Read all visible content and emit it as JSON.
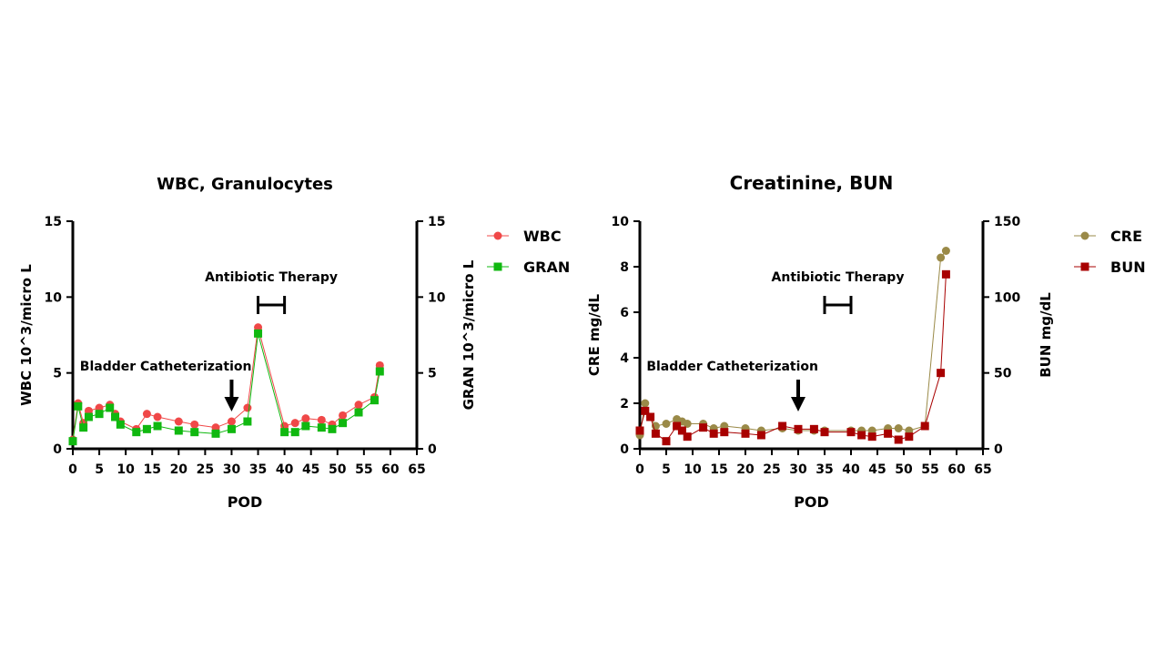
{
  "chart_data": [
    {
      "type": "line",
      "title": "WBC, Granulocytes",
      "xlabel": "POD",
      "ylabel": "WBC 10^3/micro L",
      "y2label": "GRAN 10^3/micro L",
      "xlim": [
        0,
        65
      ],
      "xticks": [
        0,
        5,
        10,
        15,
        20,
        25,
        30,
        35,
        40,
        45,
        50,
        55,
        60,
        65
      ],
      "ylim": [
        0,
        15
      ],
      "yticks": [
        0,
        5,
        10,
        15
      ],
      "y2lim": [
        0,
        15
      ],
      "y2ticks": [
        0,
        5,
        10,
        15
      ],
      "legend_position": "right",
      "annotations": [
        {
          "text": "Bladder Catheterization",
          "type": "arrow",
          "x": 30
        },
        {
          "text": "Antibiotic Therapy",
          "type": "range",
          "x": [
            35,
            40
          ]
        }
      ],
      "x": [
        0,
        1,
        2,
        3,
        5,
        7,
        8,
        9,
        12,
        14,
        16,
        20,
        23,
        27,
        30,
        33,
        35,
        40,
        42,
        44,
        47,
        49,
        51,
        54,
        57,
        58
      ],
      "series": [
        {
          "name": "WBC",
          "axis": "left",
          "marker": "circle",
          "color": "#f04848",
          "values": [
            0.6,
            3.0,
            1.7,
            2.5,
            2.7,
            2.9,
            2.3,
            1.8,
            1.3,
            2.3,
            2.1,
            1.8,
            1.6,
            1.4,
            1.8,
            2.7,
            8.0,
            1.5,
            1.7,
            2.0,
            1.9,
            1.6,
            2.2,
            2.9,
            3.4,
            5.5
          ]
        },
        {
          "name": "GRAN",
          "axis": "right",
          "marker": "square",
          "color": "#10b810",
          "values": [
            0.5,
            2.8,
            1.4,
            2.1,
            2.3,
            2.7,
            2.1,
            1.6,
            1.1,
            1.3,
            1.5,
            1.2,
            1.1,
            1.0,
            1.3,
            1.8,
            7.6,
            1.1,
            1.1,
            1.5,
            1.4,
            1.3,
            1.7,
            2.4,
            3.2,
            5.1
          ]
        }
      ]
    },
    {
      "type": "line",
      "title": "Creatinine, BUN",
      "xlabel": "POD",
      "ylabel": "CRE mg/dL",
      "y2label": "BUN mg/dL",
      "xlim": [
        0,
        65
      ],
      "xticks": [
        0,
        5,
        10,
        15,
        20,
        25,
        30,
        35,
        40,
        45,
        50,
        55,
        60,
        65
      ],
      "ylim": [
        0,
        10
      ],
      "yticks": [
        0,
        2,
        4,
        6,
        8,
        10
      ],
      "y2lim": [
        0,
        150
      ],
      "y2ticks": [
        0,
        50,
        100,
        150
      ],
      "legend_position": "right",
      "annotations": [
        {
          "text": "Bladder Catheterization",
          "type": "arrow",
          "x": 30
        },
        {
          "text": "Antibiotic Therapy",
          "type": "range",
          "x": [
            35,
            40
          ]
        }
      ],
      "x": [
        0,
        1,
        2,
        3,
        5,
        7,
        8,
        9,
        12,
        14,
        16,
        20,
        23,
        27,
        30,
        33,
        35,
        40,
        42,
        44,
        47,
        49,
        51,
        54,
        57,
        58
      ],
      "series": [
        {
          "name": "CRE",
          "axis": "left",
          "marker": "circle",
          "color": "#9a8a48",
          "values": [
            0.6,
            2.0,
            1.4,
            1.0,
            1.1,
            1.3,
            1.2,
            1.1,
            1.1,
            0.9,
            1.0,
            0.9,
            0.8,
            0.9,
            0.8,
            0.8,
            0.8,
            0.8,
            0.8,
            0.8,
            0.9,
            0.9,
            0.8,
            1.0,
            8.4,
            8.7
          ]
        },
        {
          "name": "BUN",
          "axis": "right",
          "marker": "square",
          "color": "#a80000",
          "values": [
            12,
            25,
            21,
            10,
            5,
            15,
            12,
            8,
            14,
            10,
            11,
            10,
            9,
            15,
            13,
            13,
            11,
            11,
            9,
            8,
            10,
            6,
            8,
            15,
            50,
            115
          ]
        }
      ]
    }
  ]
}
